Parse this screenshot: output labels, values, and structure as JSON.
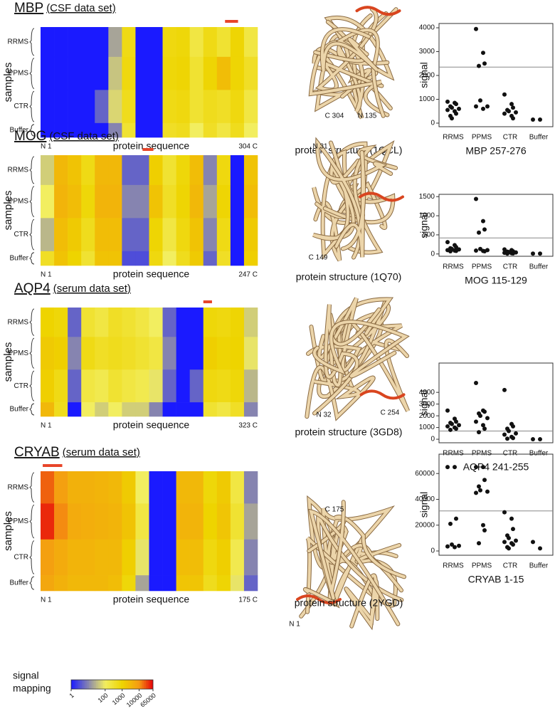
{
  "chart_data": [
    {
      "type": "heatmap",
      "title": "MBP",
      "subtitle": "(CSF data set)",
      "y_label": "samples",
      "x_label": "protein sequence",
      "x_start": "N 1",
      "x_end": "304 C",
      "categories": [
        "RRMS",
        "PPMS",
        "CTR",
        "Buffer"
      ],
      "values": [
        [
          1,
          1,
          1,
          1,
          1,
          20,
          600,
          1,
          1,
          700,
          800,
          200,
          600,
          300,
          900,
          200
        ],
        [
          1,
          1,
          1,
          1,
          1,
          40,
          700,
          1,
          1,
          800,
          900,
          300,
          900,
          2500,
          900,
          400
        ],
        [
          1,
          1,
          1,
          1,
          5,
          60,
          500,
          1,
          1,
          600,
          700,
          300,
          500,
          400,
          700,
          200
        ],
        [
          1,
          1,
          1,
          1,
          1,
          10,
          300,
          1,
          1,
          400,
          500,
          100,
          400,
          200,
          500,
          100
        ]
      ]
    },
    {
      "type": "structure",
      "caption": "protein structure (1QCL)",
      "labels": [
        "C 304",
        "N 135"
      ]
    },
    {
      "type": "strip",
      "title": "MBP 257-276",
      "y_label": "signal",
      "categories": [
        "RRMS",
        "PPMS",
        "CTR",
        "Buffer"
      ],
      "values": [
        [
          900,
          850,
          800,
          700,
          650,
          600,
          550,
          500,
          400,
          300,
          200
        ],
        [
          3950,
          2950,
          2500,
          2400,
          950,
          700,
          700,
          600
        ],
        [
          1200,
          800,
          650,
          550,
          500,
          450,
          400,
          300,
          200
        ],
        [
          150,
          150
        ]
      ],
      "threshold": 2350,
      "ylim": [
        -150,
        4180
      ],
      "yticks": [
        0,
        1000,
        2000,
        3000,
        4000
      ]
    },
    {
      "type": "heatmap",
      "title": "MOG",
      "subtitle": "(CSF data set)",
      "y_label": "samples",
      "x_label": "protein sequence",
      "x_start": "N 1",
      "x_end": "247 C",
      "categories": [
        "RRMS",
        "PPMS",
        "CTR",
        "Buffer"
      ],
      "values": [
        [
          50,
          3000,
          2000,
          600,
          3000,
          3000,
          5,
          5,
          1200,
          300,
          800,
          2500,
          10,
          700,
          1,
          2000
        ],
        [
          100,
          3500,
          2500,
          800,
          3500,
          3500,
          10,
          10,
          2000,
          400,
          900,
          3000,
          20,
          900,
          1,
          2500
        ],
        [
          30,
          2500,
          1500,
          500,
          2500,
          2500,
          5,
          5,
          900,
          200,
          700,
          2000,
          10,
          600,
          1,
          1500
        ],
        [
          400,
          2000,
          1000,
          300,
          2000,
          2000,
          3,
          3,
          700,
          100,
          500,
          1500,
          5,
          400,
          1,
          1200
        ]
      ]
    },
    {
      "type": "structure",
      "caption": "protein structure (1Q70)",
      "labels": [
        "N 31",
        "C 149"
      ]
    },
    {
      "type": "strip",
      "title": "MOG 115-129",
      "y_label": "signal",
      "categories": [
        "RRMS",
        "PPMS",
        "CTR",
        "Buffer"
      ],
      "values": [
        [
          310,
          230,
          180,
          150,
          130,
          120,
          100,
          90,
          80,
          70
        ],
        [
          1440,
          860,
          640,
          560,
          130,
          100,
          90,
          80,
          70
        ],
        [
          120,
          100,
          70,
          60,
          50,
          40,
          30,
          20,
          15,
          10
        ],
        [
          10,
          10
        ]
      ],
      "threshold": 420,
      "ylim": [
        -60,
        1560
      ],
      "yticks": [
        0,
        500,
        1000,
        1500
      ]
    },
    {
      "type": "heatmap",
      "title": "AQP4",
      "subtitle": "(serum data set)",
      "y_label": "samples",
      "x_label": "protein sequence",
      "x_start": "N 1",
      "x_end": "323 C",
      "categories": [
        "RRMS",
        "PPMS",
        "CTR",
        "Buffer"
      ],
      "values": [
        [
          1000,
          800,
          5,
          300,
          200,
          400,
          300,
          200,
          100,
          5,
          1,
          1,
          800,
          700,
          900,
          50
        ],
        [
          1500,
          1200,
          10,
          600,
          400,
          500,
          400,
          300,
          200,
          10,
          1,
          1,
          1200,
          900,
          1000,
          80
        ],
        [
          1200,
          600,
          5,
          200,
          150,
          300,
          200,
          150,
          80,
          5,
          1,
          5,
          700,
          600,
          800,
          30
        ],
        [
          3000,
          500,
          1,
          100,
          50,
          100,
          50,
          50,
          10,
          1,
          1,
          1,
          300,
          200,
          400,
          10
        ]
      ]
    },
    {
      "type": "structure",
      "caption": "protein structure (3GD8)",
      "labels": [
        "N 32",
        "C 254"
      ]
    },
    {
      "type": "strip",
      "title": "AQP4 241-255",
      "y_label": "signal",
      "categories": [
        "RRMS",
        "PPMS",
        "CTR",
        "Buffer"
      ],
      "values": [
        [
          2450,
          1750,
          1500,
          1400,
          1300,
          1200,
          1100,
          1000,
          900,
          800
        ],
        [
          4800,
          2450,
          2350,
          2200,
          2000,
          1800,
          1500,
          1200,
          900,
          600
        ],
        [
          4200,
          1300,
          1100,
          900,
          700,
          500,
          400,
          200,
          100,
          50
        ],
        [
          0,
          0
        ]
      ],
      "threshold": 700,
      "ylim": [
        -300,
        6500
      ],
      "yticks": [
        0,
        1000,
        2000,
        3000,
        4000
      ]
    },
    {
      "type": "heatmap",
      "title": "CRYAB",
      "subtitle": "(serum data set)",
      "y_label": "samples",
      "x_label": "protein sequence",
      "x_start": "N 1",
      "x_end": "175 C",
      "categories": [
        "RRMS",
        "PPMS",
        "CTR",
        "Buffer"
      ],
      "values": [
        [
          20000,
          8000,
          4000,
          4000,
          3500,
          3000,
          1500,
          100,
          1,
          1,
          3000,
          3000,
          800,
          1500,
          200,
          10
        ],
        [
          40000,
          12000,
          5000,
          4500,
          4000,
          3500,
          2000,
          200,
          1,
          1,
          3500,
          3500,
          1000,
          1800,
          300,
          20
        ],
        [
          8000,
          5000,
          3500,
          3500,
          3000,
          3000,
          1200,
          80,
          1,
          1,
          2500,
          2500,
          700,
          1200,
          150,
          10
        ],
        [
          6000,
          4000,
          3000,
          3000,
          3000,
          2500,
          800,
          20,
          1,
          1,
          1800,
          1800,
          500,
          900,
          80,
          5
        ]
      ]
    },
    {
      "type": "structure",
      "caption": "protein structure (2YGD)",
      "labels": [
        "C 175",
        "N 1"
      ]
    },
    {
      "type": "strip",
      "title": "CRYAB 1-15",
      "y_label": "signal",
      "categories": [
        "RRMS",
        "PPMS",
        "CTR",
        "Buffer"
      ],
      "values": [
        [
          65000,
          65000,
          25000,
          21000,
          5000,
          4000,
          3500,
          3000
        ],
        [
          65000,
          65000,
          55000,
          50000,
          47000,
          46000,
          45000,
          20000,
          16000,
          6000
        ],
        [
          30000,
          25000,
          17000,
          12000,
          10000,
          8000,
          7000,
          6000,
          5000,
          3000,
          2000
        ],
        [
          7000,
          2000
        ]
      ],
      "threshold": 31000,
      "ylim": [
        -3300,
        75000
      ],
      "yticks": [
        0,
        20000,
        40000,
        60000
      ]
    },
    {
      "type": "colorbar",
      "title_lines": [
        "signal",
        "mapping"
      ],
      "ticks": [
        1,
        100,
        1000,
        10000,
        65000
      ],
      "colors": [
        "#1a1aff",
        "#f2ee60",
        "#eed400",
        "#f59a12",
        "#e60008"
      ],
      "log_scale": true
    }
  ]
}
